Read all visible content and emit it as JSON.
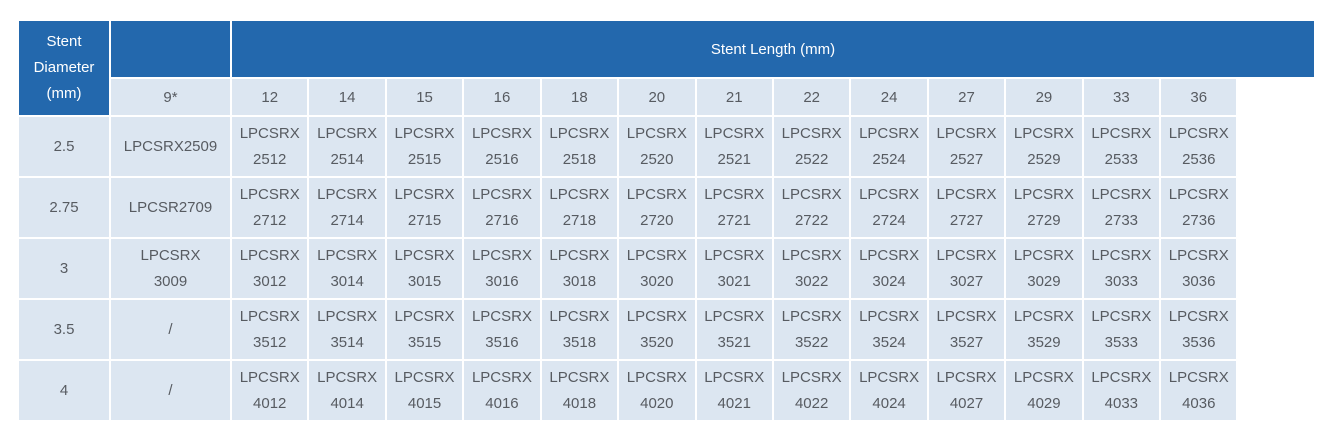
{
  "colors": {
    "header_blue": "#2368AD",
    "header_text": "#FFFFFF",
    "cell_bg": "#DCE6F1",
    "cell_text": "#575B61"
  },
  "table": {
    "diameter_header": "Stent\nDiameter\n(mm)",
    "length_header": "Stent Length (mm)",
    "length_columns": [
      "9*",
      "12",
      "14",
      "15",
      "16",
      "18",
      "20",
      "21",
      "22",
      "24",
      "27",
      "29",
      "33",
      "36"
    ],
    "rows": [
      {
        "diameter": "2.5",
        "cells": [
          "LPCSRX2509",
          "LPCSRX\n2512",
          "LPCSRX\n2514",
          "LPCSRX\n2515",
          "LPCSRX\n2516",
          "LPCSRX\n2518",
          "LPCSRX\n2520",
          "LPCSRX\n2521",
          "LPCSRX\n2522",
          "LPCSRX\n2524",
          "LPCSRX\n2527",
          "LPCSRX\n2529",
          "LPCSRX\n2533",
          "LPCSRX\n2536"
        ]
      },
      {
        "diameter": "2.75",
        "cells": [
          "LPCSR2709",
          "LPCSRX\n2712",
          "LPCSRX\n2714",
          "LPCSRX\n2715",
          "LPCSRX\n2716",
          "LPCSRX\n2718",
          "LPCSRX\n2720",
          "LPCSRX\n2721",
          "LPCSRX\n2722",
          "LPCSRX\n2724",
          "LPCSRX\n2727",
          "LPCSRX\n2729",
          "LPCSRX\n2733",
          "LPCSRX\n2736"
        ]
      },
      {
        "diameter": "3",
        "cells": [
          "LPCSRX\n3009",
          "LPCSRX\n3012",
          "LPCSRX\n3014",
          "LPCSRX\n3015",
          "LPCSRX\n3016",
          "LPCSRX\n3018",
          "LPCSRX\n3020",
          "LPCSRX\n3021",
          "LPCSRX\n3022",
          "LPCSRX\n3024",
          "LPCSRX\n3027",
          "LPCSRX\n3029",
          "LPCSRX\n3033",
          "LPCSRX\n3036"
        ]
      },
      {
        "diameter": "3.5",
        "cells": [
          "/",
          "LPCSRX\n3512",
          "LPCSRX\n3514",
          "LPCSRX\n3515",
          "LPCSRX\n3516",
          "LPCSRX\n3518",
          "LPCSRX\n3520",
          "LPCSRX\n3521",
          "LPCSRX\n3522",
          "LPCSRX\n3524",
          "LPCSRX\n3527",
          "LPCSRX\n3529",
          "LPCSRX\n3533",
          "LPCSRX\n3536"
        ]
      },
      {
        "diameter": "4",
        "cells": [
          "/",
          "LPCSRX\n4012",
          "LPCSRX\n4014",
          "LPCSRX\n4015",
          "LPCSRX\n4016",
          "LPCSRX\n4018",
          "LPCSRX\n4020",
          "LPCSRX\n4021",
          "LPCSRX\n4022",
          "LPCSRX\n4024",
          "LPCSRX\n4027",
          "LPCSRX\n4029",
          "LPCSRX\n4033",
          "LPCSRX\n4036"
        ]
      }
    ]
  }
}
